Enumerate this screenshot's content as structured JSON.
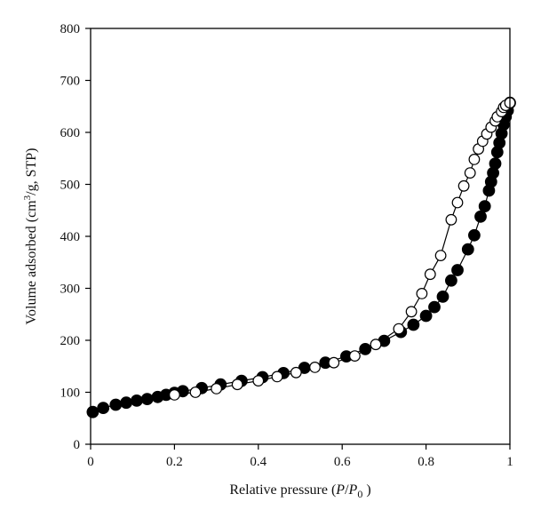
{
  "chart_data": {
    "type": "scatter",
    "title": "",
    "xlabel": {
      "prefix": "Relative pressure (",
      "p": "P",
      "slash": "/",
      "p0": "P",
      "sub0": "0",
      "suffix": " )"
    },
    "ylabel": {
      "prefix": "Volume adsorbed (cm",
      "sup": "3",
      "suffix": "/g, STP)"
    },
    "xlim": [
      0,
      1
    ],
    "ylim": [
      0,
      800
    ],
    "xticks": [
      0,
      0.2,
      0.4,
      0.6,
      0.8,
      1
    ],
    "xtick_labels": [
      "0",
      "0.2",
      "0.4",
      "0.6",
      "0.8",
      "1"
    ],
    "yticks": [
      0,
      100,
      200,
      300,
      400,
      500,
      600,
      700,
      800
    ],
    "ytick_labels": [
      "0",
      "100",
      "200",
      "300",
      "400",
      "500",
      "600",
      "700",
      "800"
    ],
    "grid": false,
    "legend": "none",
    "series": [
      {
        "marker": "filled-circle",
        "color": "#000000",
        "points": [
          [
            0.005,
            62
          ],
          [
            0.03,
            70
          ],
          [
            0.06,
            76
          ],
          [
            0.085,
            80
          ],
          [
            0.11,
            84
          ],
          [
            0.135,
            87
          ],
          [
            0.16,
            91
          ],
          [
            0.18,
            95
          ],
          [
            0.2,
            99
          ],
          [
            0.22,
            102
          ],
          [
            0.265,
            108
          ],
          [
            0.31,
            115
          ],
          [
            0.36,
            122
          ],
          [
            0.41,
            129
          ],
          [
            0.46,
            137
          ],
          [
            0.51,
            147
          ],
          [
            0.56,
            157
          ],
          [
            0.61,
            169
          ],
          [
            0.655,
            183
          ],
          [
            0.7,
            199
          ],
          [
            0.74,
            216
          ],
          [
            0.77,
            230
          ],
          [
            0.8,
            247
          ],
          [
            0.82,
            264
          ],
          [
            0.84,
            284
          ],
          [
            0.86,
            315
          ],
          [
            0.875,
            335
          ],
          [
            0.9,
            375
          ],
          [
            0.915,
            402
          ],
          [
            0.93,
            438
          ],
          [
            0.94,
            458
          ],
          [
            0.95,
            488
          ],
          [
            0.955,
            505
          ],
          [
            0.96,
            522
          ],
          [
            0.965,
            540
          ],
          [
            0.97,
            562
          ],
          [
            0.975,
            580
          ],
          [
            0.98,
            598
          ],
          [
            0.985,
            615
          ],
          [
            0.99,
            630
          ],
          [
            0.995,
            642
          ],
          [
            1.0,
            657
          ]
        ]
      },
      {
        "marker": "open-circle",
        "color": "#000000",
        "points": [
          [
            0.2,
            95
          ],
          [
            0.25,
            100
          ],
          [
            0.3,
            107
          ],
          [
            0.35,
            115
          ],
          [
            0.4,
            122
          ],
          [
            0.445,
            130
          ],
          [
            0.49,
            138
          ],
          [
            0.535,
            148
          ],
          [
            0.58,
            157
          ],
          [
            0.63,
            170
          ],
          [
            0.68,
            192
          ],
          [
            0.735,
            222
          ],
          [
            0.765,
            255
          ],
          [
            0.79,
            290
          ],
          [
            0.81,
            327
          ],
          [
            0.835,
            363
          ],
          [
            0.86,
            432
          ],
          [
            0.875,
            465
          ],
          [
            0.89,
            497
          ],
          [
            0.905,
            522
          ],
          [
            0.915,
            548
          ],
          [
            0.925,
            568
          ],
          [
            0.935,
            583
          ],
          [
            0.945,
            597
          ],
          [
            0.955,
            610
          ],
          [
            0.965,
            622
          ],
          [
            0.97,
            630
          ],
          [
            0.98,
            640
          ],
          [
            0.985,
            648
          ],
          [
            0.99,
            652
          ],
          [
            1.0,
            657
          ]
        ]
      }
    ]
  }
}
